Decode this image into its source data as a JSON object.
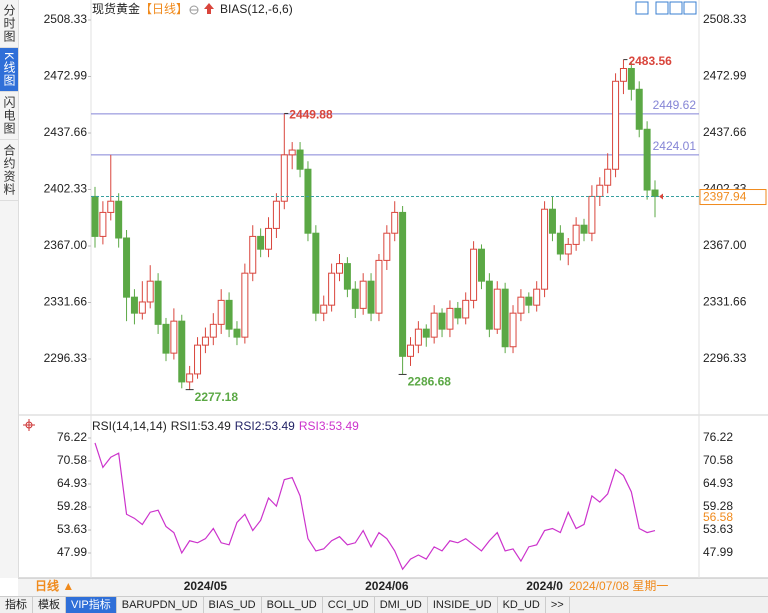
{
  "sidebar_tabs": [
    "分时图",
    "K线图",
    "闪电图",
    "合约资料"
  ],
  "chart_data": {
    "type": "candlestick",
    "title": "现货黄金",
    "period": "【日线】",
    "indicator": "BIAS(12,-6,6)",
    "categories": [
      null,
      null,
      null,
      null,
      null,
      null,
      null,
      null,
      null,
      null,
      null,
      null,
      null,
      null,
      "2024/05",
      null,
      null,
      null,
      null,
      null,
      null,
      null,
      null,
      null,
      null,
      null,
      null,
      null,
      null,
      null,
      null,
      null,
      null,
      null,
      null,
      null,
      null,
      "2024/06",
      null,
      null,
      null,
      null,
      null,
      null,
      null,
      null,
      null,
      null,
      null,
      null,
      null,
      null,
      null,
      null,
      null,
      null,
      null,
      "2024/0",
      null,
      null,
      null,
      null,
      null,
      null,
      null,
      null,
      null,
      null,
      null,
      null,
      null,
      null
    ],
    "candles": [
      [
        2398,
        2404,
        2366,
        2373
      ],
      [
        2373,
        2395,
        2368,
        2388
      ],
      [
        2388,
        2424,
        2383,
        2395
      ],
      [
        2395,
        2400,
        2366,
        2372
      ],
      [
        2372,
        2377,
        2320,
        2335
      ],
      [
        2335,
        2340,
        2318,
        2325
      ],
      [
        2325,
        2345,
        2321,
        2332
      ],
      [
        2332,
        2355,
        2328,
        2345
      ],
      [
        2345,
        2350,
        2312,
        2318
      ],
      [
        2318,
        2322,
        2295,
        2300
      ],
      [
        2300,
        2328,
        2296,
        2320
      ],
      [
        2320,
        2324,
        2278,
        2282
      ],
      [
        2282,
        2292,
        2277.18,
        2287
      ],
      [
        2287,
        2310,
        2284,
        2305
      ],
      [
        2305,
        2316,
        2300,
        2310
      ],
      [
        2310,
        2325,
        2305,
        2318
      ],
      [
        2318,
        2340,
        2312,
        2333
      ],
      [
        2333,
        2338,
        2310,
        2315
      ],
      [
        2315,
        2320,
        2305,
        2310
      ],
      [
        2310,
        2356,
        2306,
        2350
      ],
      [
        2350,
        2380,
        2345,
        2373
      ],
      [
        2373,
        2378,
        2360,
        2365
      ],
      [
        2365,
        2385,
        2360,
        2378
      ],
      [
        2378,
        2400,
        2372,
        2395
      ],
      [
        2395,
        2449.88,
        2390,
        2424
      ],
      [
        2424,
        2432,
        2415,
        2427
      ],
      [
        2427,
        2432,
        2410,
        2415
      ],
      [
        2415,
        2420,
        2370,
        2375
      ],
      [
        2375,
        2380,
        2320,
        2325
      ],
      [
        2325,
        2336,
        2320,
        2330
      ],
      [
        2330,
        2356,
        2326,
        2350
      ],
      [
        2350,
        2362,
        2345,
        2356
      ],
      [
        2356,
        2360,
        2335,
        2340
      ],
      [
        2340,
        2345,
        2322,
        2328
      ],
      [
        2328,
        2350,
        2324,
        2345
      ],
      [
        2345,
        2350,
        2320,
        2325
      ],
      [
        2325,
        2362,
        2320,
        2358
      ],
      [
        2358,
        2380,
        2352,
        2375
      ],
      [
        2375,
        2395,
        2370,
        2388
      ],
      [
        2388,
        2392,
        2286.68,
        2298
      ],
      [
        2298,
        2310,
        2292,
        2305
      ],
      [
        2305,
        2320,
        2300,
        2315
      ],
      [
        2315,
        2318,
        2304,
        2310
      ],
      [
        2310,
        2330,
        2306,
        2325
      ],
      [
        2325,
        2328,
        2310,
        2315
      ],
      [
        2315,
        2333,
        2310,
        2328
      ],
      [
        2328,
        2332,
        2318,
        2322
      ],
      [
        2322,
        2338,
        2318,
        2333
      ],
      [
        2333,
        2370,
        2328,
        2365
      ],
      [
        2365,
        2368,
        2340,
        2345
      ],
      [
        2345,
        2350,
        2310,
        2315
      ],
      [
        2315,
        2345,
        2312,
        2340
      ],
      [
        2340,
        2344,
        2300,
        2304
      ],
      [
        2304,
        2330,
        2300,
        2325
      ],
      [
        2325,
        2340,
        2320,
        2335
      ],
      [
        2335,
        2338,
        2325,
        2330
      ],
      [
        2330,
        2345,
        2326,
        2340
      ],
      [
        2340,
        2395,
        2335,
        2390
      ],
      [
        2390,
        2398,
        2370,
        2375
      ],
      [
        2375,
        2380,
        2358,
        2362
      ],
      [
        2362,
        2372,
        2355,
        2368
      ],
      [
        2368,
        2385,
        2364,
        2380
      ],
      [
        2380,
        2384,
        2370,
        2375
      ],
      [
        2375,
        2405,
        2370,
        2398
      ],
      [
        2398,
        2410,
        2392,
        2405
      ],
      [
        2405,
        2425,
        2400,
        2415
      ],
      [
        2415,
        2475,
        2410,
        2470
      ],
      [
        2470,
        2483.56,
        2462,
        2478
      ],
      [
        2478,
        2482,
        2458,
        2465
      ],
      [
        2465,
        2470,
        2435,
        2440
      ],
      [
        2440,
        2445,
        2396,
        2402
      ],
      [
        2402,
        2408,
        2385,
        2397.94
      ]
    ],
    "up_color": "#d9453c",
    "down_color": "#5ba845",
    "ylim": [
      2264.44,
      2517.71
    ],
    "yticks": [
      2296.33,
      2331.66,
      {
        "value": 2367,
        "label": "2367.00"
      },
      2402.33,
      2437.66,
      2472.99,
      2508.33
    ],
    "price_lines": [
      2449.62,
      2424.01
    ],
    "price_line_color": "#8585d6",
    "last_price_color": "#f08a1c",
    "rsi": {
      "legend": [
        "RSI(14,14,14)",
        "RSI1:53.49",
        "RSI2:53.49",
        "RSI3:53.49"
      ],
      "legend_colors": [
        "#222222",
        "#222222",
        "#222266",
        "#cc33cc"
      ],
      "values": [
        75.0,
        69.0,
        71.5,
        72.5,
        57.5,
        56.5,
        55.0,
        58.0,
        58.5,
        54.5,
        53.0,
        48.0,
        51.0,
        50.5,
        51.5,
        54.0,
        50.5,
        50.0,
        55.5,
        57.5,
        53.5,
        56.0,
        61.5,
        59.5,
        66.0,
        66.5,
        62.0,
        51.5,
        48.5,
        49.0,
        51.0,
        52.0,
        50.0,
        50.5,
        53.5,
        49.5,
        53.0,
        51.5,
        48.5,
        44.0,
        46.5,
        47.5,
        46.5,
        49.5,
        48.5,
        51.0,
        50.5,
        51.5,
        50.0,
        48.5,
        51.0,
        53.0,
        48.5,
        49.0,
        46.0,
        49.5,
        50.0,
        53.5,
        54.0,
        53.0,
        58.0,
        54.0,
        55.0,
        62.0,
        60.5,
        62.5,
        68.5,
        67.0,
        63.0,
        54.0,
        53.0,
        53.49
      ],
      "color": "#cc33cc",
      "ylim": [
        42.59,
        79.41
      ],
      "yticks": [
        47.99,
        53.63,
        59.28,
        64.93,
        70.58,
        76.22
      ],
      "marker": 56.58
    },
    "period_selector": "日线 ▲",
    "cursor_date": "2024/07/08 星期一"
  },
  "tabs": [
    "指标",
    "模板",
    "VIP指标",
    "BARUPDN_UD",
    "BIAS_UD",
    "BOLL_UD",
    "CCI_UD",
    "DMI_UD",
    "INSIDE_UD",
    "KD_UD",
    ">>"
  ]
}
